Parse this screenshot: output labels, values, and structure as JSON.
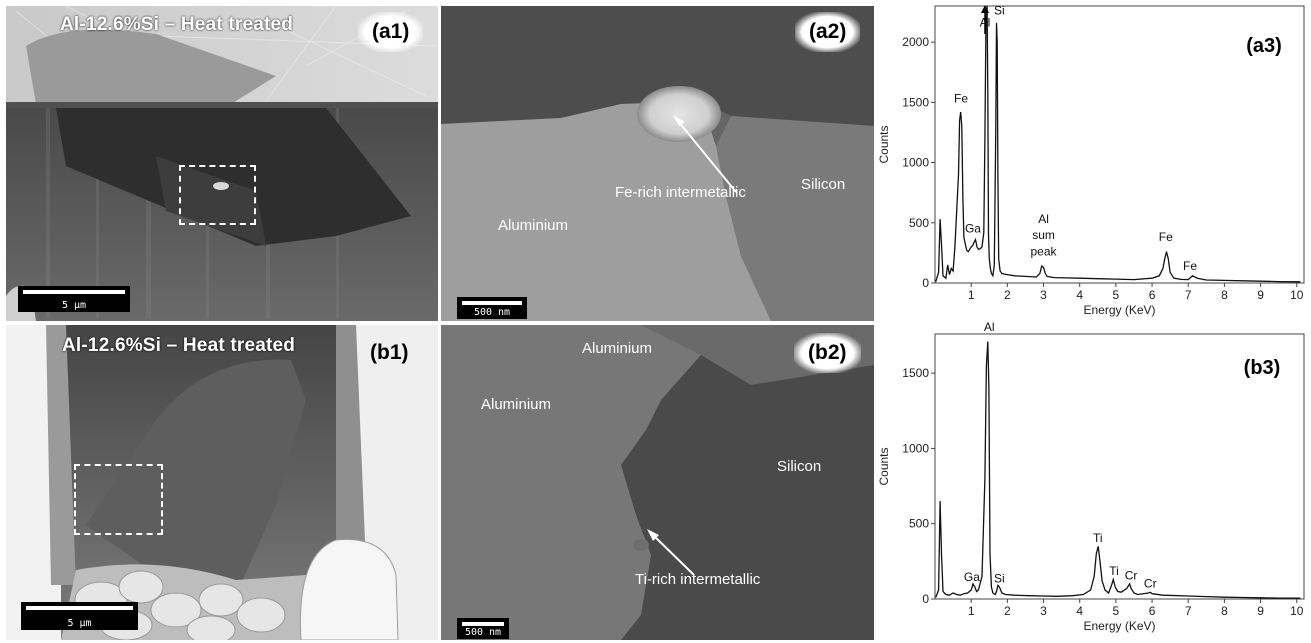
{
  "panels": {
    "a1": {
      "label": "(a1)",
      "title": "Al-12.6%Si – Heat treated",
      "scalebar": "5 μm"
    },
    "a2": {
      "label": "(a2)",
      "scalebar": "500 nm",
      "annotations": {
        "intermetallic": "Fe-rich intermetallic",
        "silicon": "Silicon",
        "aluminium": "Aluminium"
      }
    },
    "b1": {
      "label": "(b1)",
      "title": "Al-12.6%Si – Heat treated",
      "scalebar": "5 μm"
    },
    "b2": {
      "label": "(b2)",
      "scalebar": "500 nm",
      "annotations": {
        "aluminium_top": "Aluminium",
        "aluminium_left": "Aluminium",
        "silicon": "Silicon",
        "intermetallic": "Ti-rich intermetallic"
      }
    }
  },
  "chart_data": [
    {
      "type": "line",
      "panel_label": "(a3)",
      "title": "",
      "xlabel": "Energy (KeV)",
      "ylabel": "Counts",
      "xlim": [
        0,
        10.2
      ],
      "ylim": [
        0,
        2300
      ],
      "xticks": [
        1,
        2,
        3,
        4,
        5,
        6,
        7,
        8,
        9,
        10
      ],
      "yticks": [
        0,
        500,
        1000,
        1500,
        2000
      ],
      "series": [
        {
          "x": [
            0.02,
            0.1,
            0.14,
            0.18,
            0.22,
            0.3,
            0.35,
            0.4,
            0.45,
            0.5,
            0.55,
            0.6,
            0.65,
            0.68,
            0.71,
            0.74,
            0.77,
            0.8,
            0.84,
            0.88,
            0.92,
            0.96,
            1.0,
            1.04,
            1.08,
            1.12,
            1.16,
            1.2,
            1.25,
            1.3,
            1.35,
            1.38,
            1.41,
            1.44,
            1.46,
            1.48,
            1.5,
            1.53,
            1.56,
            1.6,
            1.64,
            1.68,
            1.7,
            1.72,
            1.74,
            1.76,
            1.8,
            1.85,
            1.9,
            2.0,
            2.2,
            2.5,
            2.8,
            2.9,
            2.95,
            3.0,
            3.05,
            3.1,
            3.3,
            3.6,
            4.0,
            4.5,
            5.0,
            5.5,
            6.0,
            6.2,
            6.3,
            6.35,
            6.4,
            6.45,
            6.5,
            6.6,
            6.8,
            7.0,
            7.06,
            7.12,
            7.25,
            7.5,
            8.0,
            8.5,
            9.0,
            9.5,
            10.1
          ],
          "y": [
            10,
            90,
            530,
            320,
            60,
            40,
            150,
            70,
            120,
            100,
            300,
            600,
            900,
            1350,
            1420,
            1300,
            700,
            380,
            320,
            270,
            260,
            280,
            300,
            310,
            340,
            360,
            300,
            280,
            285,
            300,
            420,
            1200,
            2200,
            2300,
            1600,
            400,
            200,
            120,
            80,
            60,
            150,
            1300,
            2160,
            2000,
            900,
            200,
            100,
            80,
            75,
            70,
            60,
            55,
            50,
            80,
            140,
            130,
            80,
            55,
            45,
            42,
            40,
            36,
            32,
            28,
            40,
            60,
            120,
            200,
            260,
            200,
            90,
            40,
            30,
            28,
            45,
            60,
            40,
            25,
            22,
            18,
            15,
            12,
            10
          ]
        }
      ],
      "peak_labels": [
        {
          "text": "Al",
          "x": 1.38,
          "y": 2130
        },
        {
          "text": "Si",
          "x": 1.78,
          "y": 2230
        },
        {
          "text": "Fe",
          "x": 0.72,
          "y": 1500
        },
        {
          "text": "Ga",
          "x": 1.05,
          "y": 420
        },
        {
          "text": "Al",
          "x": 3.0,
          "y": 500
        },
        {
          "text": "sum",
          "x": 3.0,
          "y": 365
        },
        {
          "text": "peak",
          "x": 3.0,
          "y": 230
        },
        {
          "text": "Fe",
          "x": 6.38,
          "y": 350
        },
        {
          "text": "Fe",
          "x": 7.05,
          "y": 110
        }
      ]
    },
    {
      "type": "line",
      "panel_label": "(b3)",
      "title": "",
      "xlabel": "Energy (KeV)",
      "ylabel": "Counts",
      "xlim": [
        0,
        10.2
      ],
      "ylim": [
        0,
        1760
      ],
      "xticks": [
        1,
        2,
        3,
        4,
        5,
        6,
        7,
        8,
        9,
        10
      ],
      "yticks": [
        0,
        500,
        1000,
        1500
      ],
      "series": [
        {
          "x": [
            0.02,
            0.1,
            0.14,
            0.18,
            0.22,
            0.3,
            0.4,
            0.5,
            0.6,
            0.7,
            0.8,
            0.9,
            1.0,
            1.05,
            1.1,
            1.15,
            1.2,
            1.3,
            1.38,
            1.42,
            1.46,
            1.49,
            1.52,
            1.56,
            1.6,
            1.66,
            1.7,
            1.74,
            1.78,
            1.85,
            1.95,
            2.2,
            2.6,
            3.0,
            3.4,
            3.8,
            4.1,
            4.3,
            4.4,
            4.46,
            4.51,
            4.56,
            4.62,
            4.7,
            4.8,
            4.88,
            4.93,
            4.98,
            5.05,
            5.15,
            5.3,
            5.38,
            5.42,
            5.5,
            5.6,
            5.9,
            5.95,
            6.0,
            6.3,
            7.0,
            7.5,
            8.0,
            8.5,
            9.0,
            9.5,
            10.1
          ],
          "y": [
            10,
            60,
            650,
            300,
            50,
            30,
            25,
            40,
            30,
            25,
            35,
            40,
            60,
            100,
            80,
            50,
            60,
            150,
            800,
            1550,
            1710,
            1400,
            300,
            80,
            40,
            30,
            50,
            90,
            80,
            40,
            30,
            25,
            22,
            20,
            18,
            22,
            30,
            60,
            150,
            300,
            350,
            250,
            120,
            60,
            40,
            90,
            130,
            80,
            50,
            45,
            70,
            100,
            70,
            40,
            30,
            40,
            45,
            35,
            25,
            20,
            16,
            12,
            10,
            8,
            6,
            5
          ]
        }
      ],
      "peak_labels": [
        {
          "text": "Al",
          "x": 1.5,
          "y": 1780
        },
        {
          "text": "Ga",
          "x": 1.02,
          "y": 120
        },
        {
          "text": "Si",
          "x": 1.78,
          "y": 110
        },
        {
          "text": "Ti",
          "x": 4.5,
          "y": 380
        },
        {
          "text": "Ti",
          "x": 4.95,
          "y": 160
        },
        {
          "text": "Cr",
          "x": 5.42,
          "y": 130
        },
        {
          "text": "Cr",
          "x": 5.95,
          "y": 75
        }
      ]
    }
  ]
}
